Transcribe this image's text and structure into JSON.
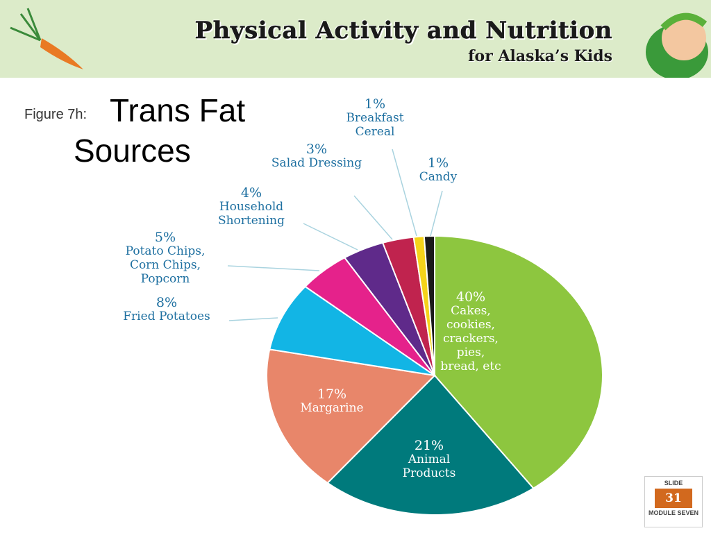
{
  "header": {
    "title": "Physical Activity and Nutrition",
    "subtitle": "for Alaska’s Kids"
  },
  "figure_label": "Figure 7h:",
  "chart_data": {
    "type": "pie",
    "title": "Trans Fat Sources",
    "categories": [
      "Cakes, cookies, crackers, pies, bread, etc",
      "Animal Products",
      "Margarine",
      "Fried Potatoes",
      "Potato Chips, Corn Chips, Popcorn",
      "Household Shortening",
      "Salad Dressing",
      "Breakfast Cereal",
      "Candy"
    ],
    "values": [
      40,
      21,
      17,
      8,
      5,
      4,
      3,
      1,
      1
    ],
    "value_labels": [
      "40%",
      "21%",
      "17%",
      "8%",
      "5%",
      "4%",
      "3%",
      "1%",
      "1%"
    ],
    "colors": [
      "#8dc63f",
      "#007a7c",
      "#e8866a",
      "#12b5e5",
      "#e5228b",
      "#5f2a8a",
      "#c0234e",
      "#f5d31a",
      "#1a1a1a"
    ]
  },
  "slide": {
    "label": "SLIDE",
    "number": 31,
    "module": "MODULE SEVEN"
  }
}
